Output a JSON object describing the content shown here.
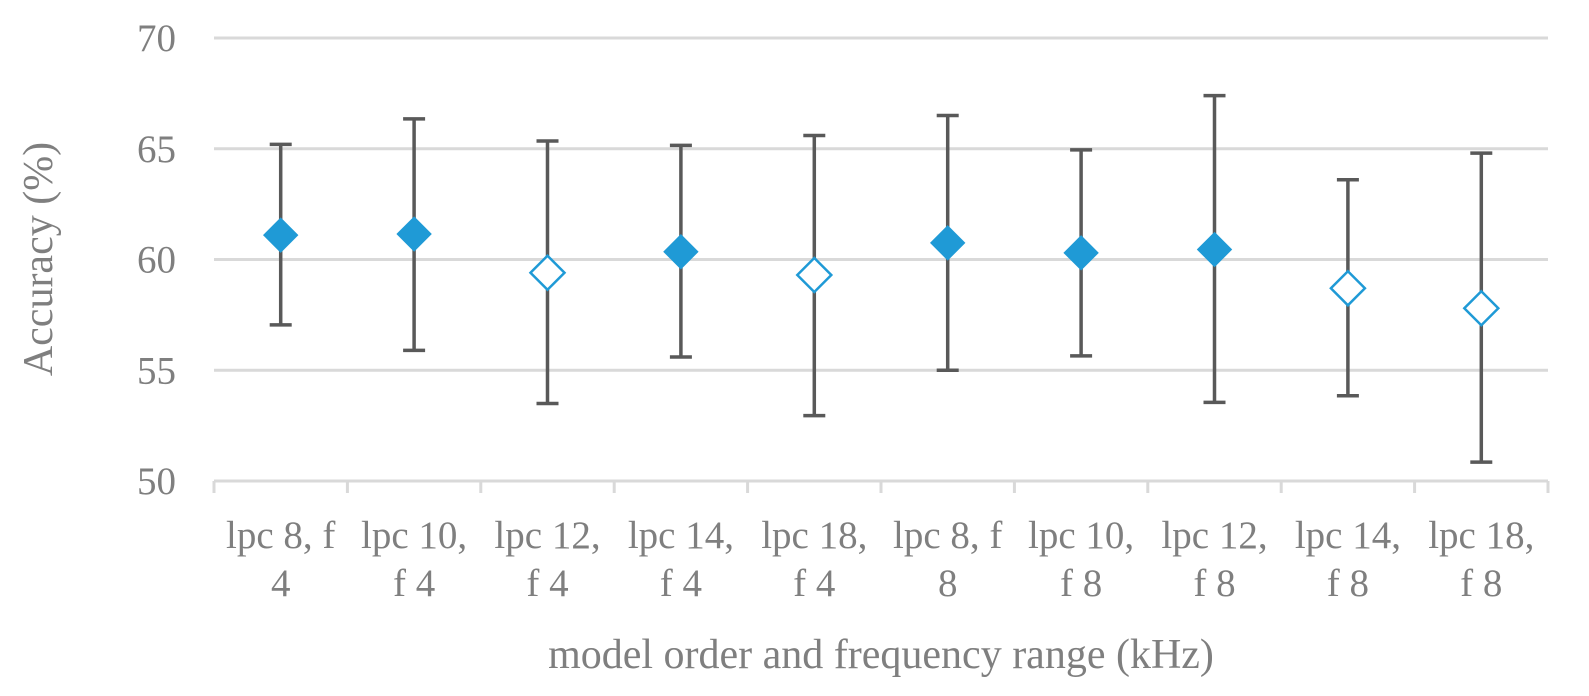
{
  "chart_data": {
    "type": "scatter",
    "ylabel": "Accuracy (%)",
    "xlabel": "model order and frequency range (kHz)",
    "ylim": [
      50,
      70
    ],
    "yticks": [
      50,
      55,
      60,
      65,
      70
    ],
    "grid": true,
    "marker_color": "#1f9ad6",
    "errorbar_color": "#595959",
    "categories": [
      [
        "lpc 8, f",
        "4"
      ],
      [
        "lpc 10,",
        "f 4"
      ],
      [
        "lpc 12,",
        "f 4"
      ],
      [
        "lpc 14,",
        "f 4"
      ],
      [
        "lpc 18,",
        "f 4"
      ],
      [
        "lpc 8, f",
        "8"
      ],
      [
        "lpc 10,",
        "f 8"
      ],
      [
        "lpc 12,",
        "f 8"
      ],
      [
        "lpc 14,",
        "f 8"
      ],
      [
        "lpc 18,",
        "f 8"
      ]
    ],
    "values": [
      61.1,
      61.15,
      59.4,
      60.35,
      59.3,
      60.75,
      60.3,
      60.45,
      58.7,
      57.8
    ],
    "error_low": [
      57.05,
      55.9,
      53.5,
      55.6,
      52.95,
      55.0,
      55.65,
      53.55,
      53.85,
      50.85
    ],
    "error_high": [
      65.2,
      66.35,
      65.35,
      65.15,
      65.6,
      66.5,
      64.95,
      67.4,
      63.6,
      64.8
    ],
    "filled": [
      true,
      true,
      false,
      true,
      false,
      true,
      true,
      true,
      false,
      false
    ]
  }
}
